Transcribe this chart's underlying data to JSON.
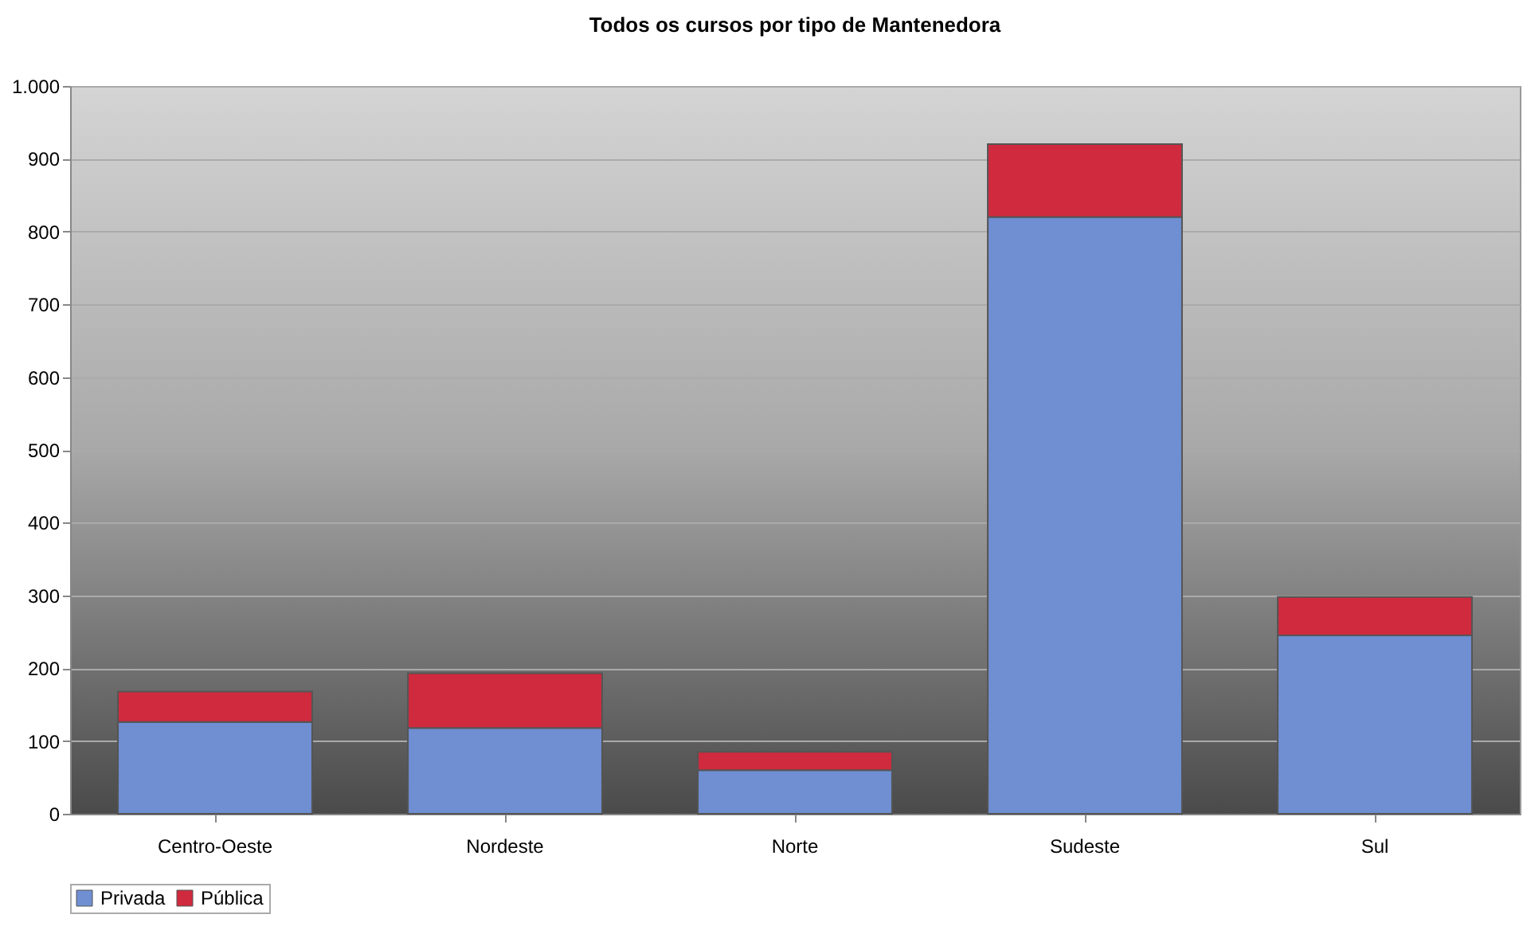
{
  "chart_data": {
    "type": "bar",
    "title": "Todos os cursos por tipo de Mantenedora",
    "categories": [
      "Centro-Oeste",
      "Nordeste",
      "Norte",
      "Sudeste",
      "Sul"
    ],
    "series": [
      {
        "name": "Privada",
        "color": "#6f8fd2",
        "values": [
          126,
          118,
          60,
          820,
          245
        ]
      },
      {
        "name": "Pública",
        "color": "#d02a3e",
        "values": [
          42,
          75,
          25,
          100,
          53
        ]
      }
    ],
    "stacked": true,
    "ylim": [
      0,
      1000
    ],
    "yticks": [
      0,
      100,
      200,
      300,
      400,
      500,
      600,
      700,
      800,
      900,
      {
        "value": 1000,
        "label": "1.000"
      }
    ],
    "grid": "y",
    "legend": "bottom"
  }
}
